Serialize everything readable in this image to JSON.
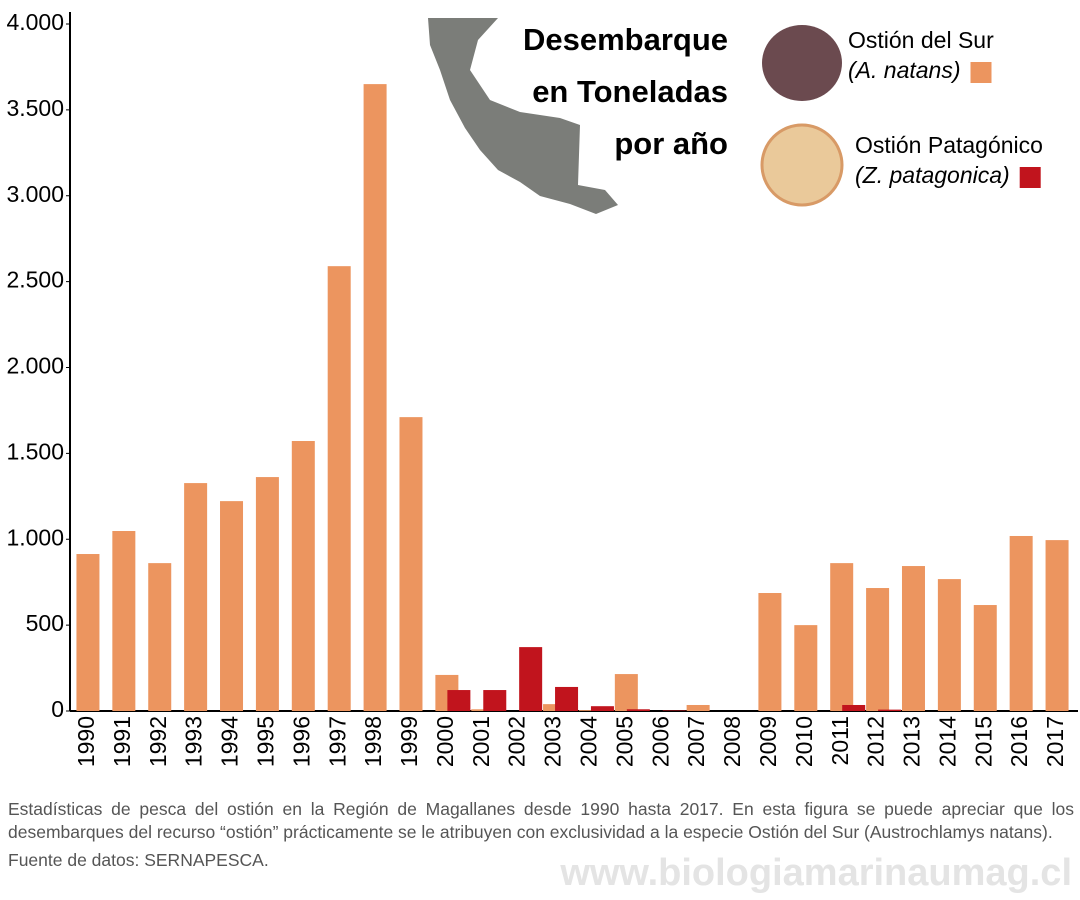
{
  "chart_data": {
    "type": "bar",
    "title": [
      "Desembarque",
      "en Toneladas",
      "por año"
    ],
    "categories": [
      "1990",
      "1991",
      "1992",
      "1993",
      "1994",
      "1995",
      "1996",
      "1997",
      "1998",
      "1999",
      "2000",
      "2001",
      "2002",
      "2003",
      "2004",
      "2005",
      "2006",
      "2007",
      "2008",
      "2009",
      "2010",
      "2011",
      "2012",
      "2013",
      "2014",
      "2015",
      "2016",
      "2017"
    ],
    "series": [
      {
        "name": "Ostión del Sur",
        "scientific_name": "(A. natans)",
        "color": "#ec955f",
        "values": [
          914,
          1048,
          861,
          1327,
          1222,
          1362,
          1572,
          2590,
          3650,
          1711,
          210,
          10,
          0,
          40,
          5,
          215,
          0,
          35,
          0,
          687,
          500,
          861,
          716,
          844,
          768,
          617,
          1019,
          995
        ]
      },
      {
        "name": "Ostión Patagónico",
        "scientific_name": "(Z. patagonica)",
        "color": "#c1141d",
        "values": [
          0,
          0,
          0,
          0,
          0,
          0,
          0,
          0,
          0,
          0,
          122,
          122,
          372,
          140,
          28,
          10,
          3,
          0,
          0,
          0,
          0,
          35,
          8,
          0,
          0,
          0,
          0,
          0
        ]
      }
    ],
    "ylim": [
      0,
      4000
    ],
    "yticks": [
      0,
      500,
      {
        "value": 1000,
        "label": "1.000"
      },
      {
        "value": 1500,
        "label": "1.500"
      },
      {
        "value": 2000,
        "label": "2.000"
      },
      {
        "value": 2500,
        "label": "2.500"
      },
      {
        "value": 3000,
        "label": "3.000"
      },
      {
        "value": 3500,
        "label": "3.500"
      },
      {
        "value": 4000,
        "label": "4.000"
      }
    ],
    "grid": false,
    "caption": "Estadísticas de pesca del ostión en la Región de Magallanes desde 1990 hasta 2017. En esta figura se puede apreciar que los desembarques del recurso “ostión” prácticamente se le atribuyen con exclusividad a la especie Ostión del Sur (Austrochlamys natans).",
    "source": "Fuente de datos: SERNAPESCA.",
    "watermark": "www.biologiamarinaumag.cl"
  }
}
